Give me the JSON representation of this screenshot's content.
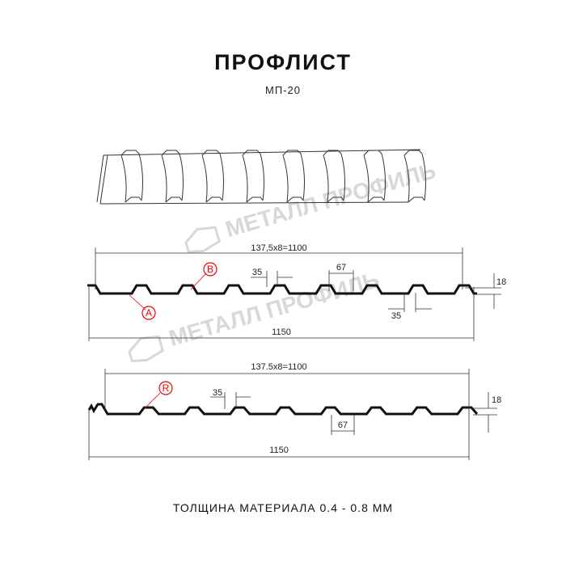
{
  "title": "ПРОФЛИСТ",
  "subtitle": "МП-20",
  "watermark": "МЕТАЛЛ ПРОФИЛЬ",
  "footer": "ТОЛЩИНА МАТЕРИАЛА 0.4 - 0.8 ММ",
  "profile_a": {
    "pitch": "137,5x8=1100",
    "width": "1150",
    "rib_top": "35",
    "rib_bottom": "35",
    "rib_gap": "67",
    "height": "18",
    "marker_a": "A",
    "marker_b": "B"
  },
  "profile_b": {
    "pitch": "137.5x8=1100",
    "width": "1150",
    "rib_top": "35",
    "rib_gap": "67",
    "height": "18",
    "marker_r": "R"
  },
  "colors": {
    "marker": "#e00000",
    "line": "#111111",
    "watermark": "#d8d8d8"
  }
}
